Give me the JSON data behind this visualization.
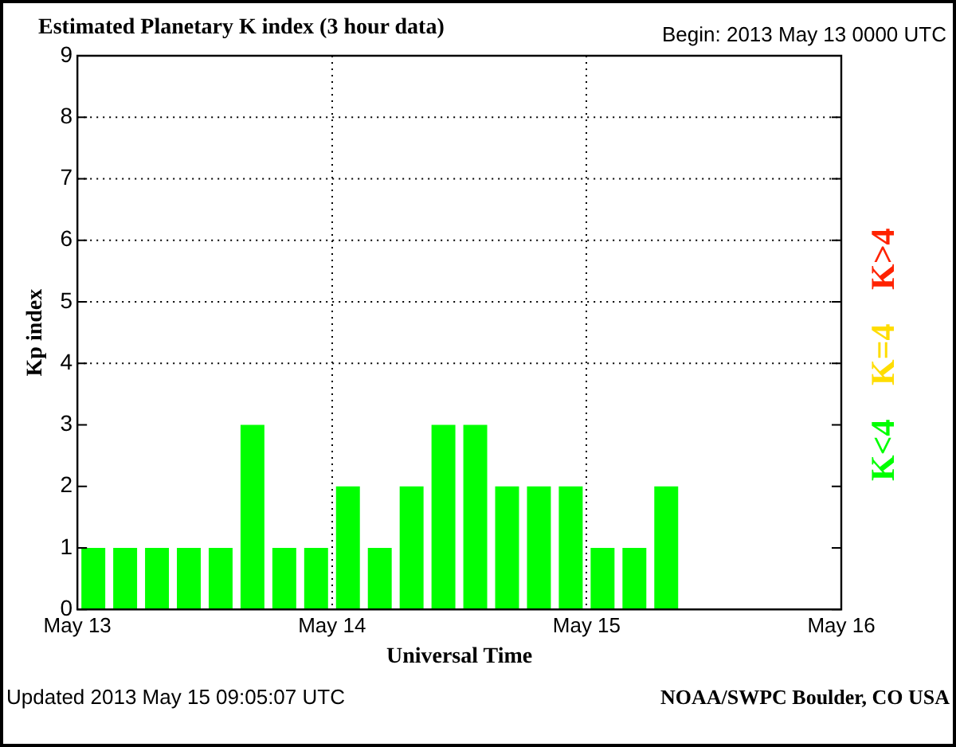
{
  "chart_data": {
    "type": "bar",
    "title": "Estimated Planetary K index (3 hour data)",
    "subtitle": "Begin: 2013 May 13 0000 UTC",
    "xlabel": "Universal Time",
    "ylabel": "Kp index",
    "x": [
      "2013-05-13T01:30",
      "2013-05-13T04:30",
      "2013-05-13T07:30",
      "2013-05-13T10:30",
      "2013-05-13T13:30",
      "2013-05-13T16:30",
      "2013-05-13T19:30",
      "2013-05-13T22:30",
      "2013-05-14T01:30",
      "2013-05-14T04:30",
      "2013-05-14T07:30",
      "2013-05-14T10:30",
      "2013-05-14T13:30",
      "2013-05-14T16:30",
      "2013-05-14T19:30",
      "2013-05-14T22:30",
      "2013-05-15T01:30",
      "2013-05-15T04:30",
      "2013-05-15T07:30"
    ],
    "series": [
      {
        "color": "#00ff00",
        "values": [
          1,
          1,
          1,
          1,
          1,
          3,
          1,
          1,
          2,
          1,
          2,
          3,
          3,
          2,
          2,
          2,
          1,
          1,
          2
        ]
      }
    ],
    "xlim": [
      "2013-05-13",
      "2013-05-16"
    ],
    "xticks": [
      {
        "value": "2013-05-13",
        "label": "May 13"
      },
      {
        "value": "2013-05-14",
        "label": "May 14"
      },
      {
        "value": "2013-05-15",
        "label": "May 15"
      },
      {
        "value": "2013-05-16",
        "label": "May 16"
      }
    ],
    "ylim": [
      0,
      9
    ],
    "yticks": [
      0,
      1,
      2,
      3,
      4,
      5,
      6,
      7,
      8,
      9
    ],
    "grid": "x",
    "line_style": "dotted",
    "ref_lines": [
      {
        "axis": "y",
        "value": 4,
        "line_style": "dotted"
      },
      {
        "axis": "y",
        "value": 5,
        "line_style": "dotted"
      },
      {
        "axis": "y",
        "value": 6,
        "line_style": "dotted"
      },
      {
        "axis": "y",
        "value": 7,
        "line_style": "dotted"
      },
      {
        "axis": "y",
        "value": 8,
        "line_style": "dotted"
      }
    ],
    "annotations": [
      "Updated 2013 May 15 09:05:07 UTC",
      "NOAA/SWPC Boulder, CO USA",
      "K<4",
      "K=4",
      "K>4"
    ]
  }
}
